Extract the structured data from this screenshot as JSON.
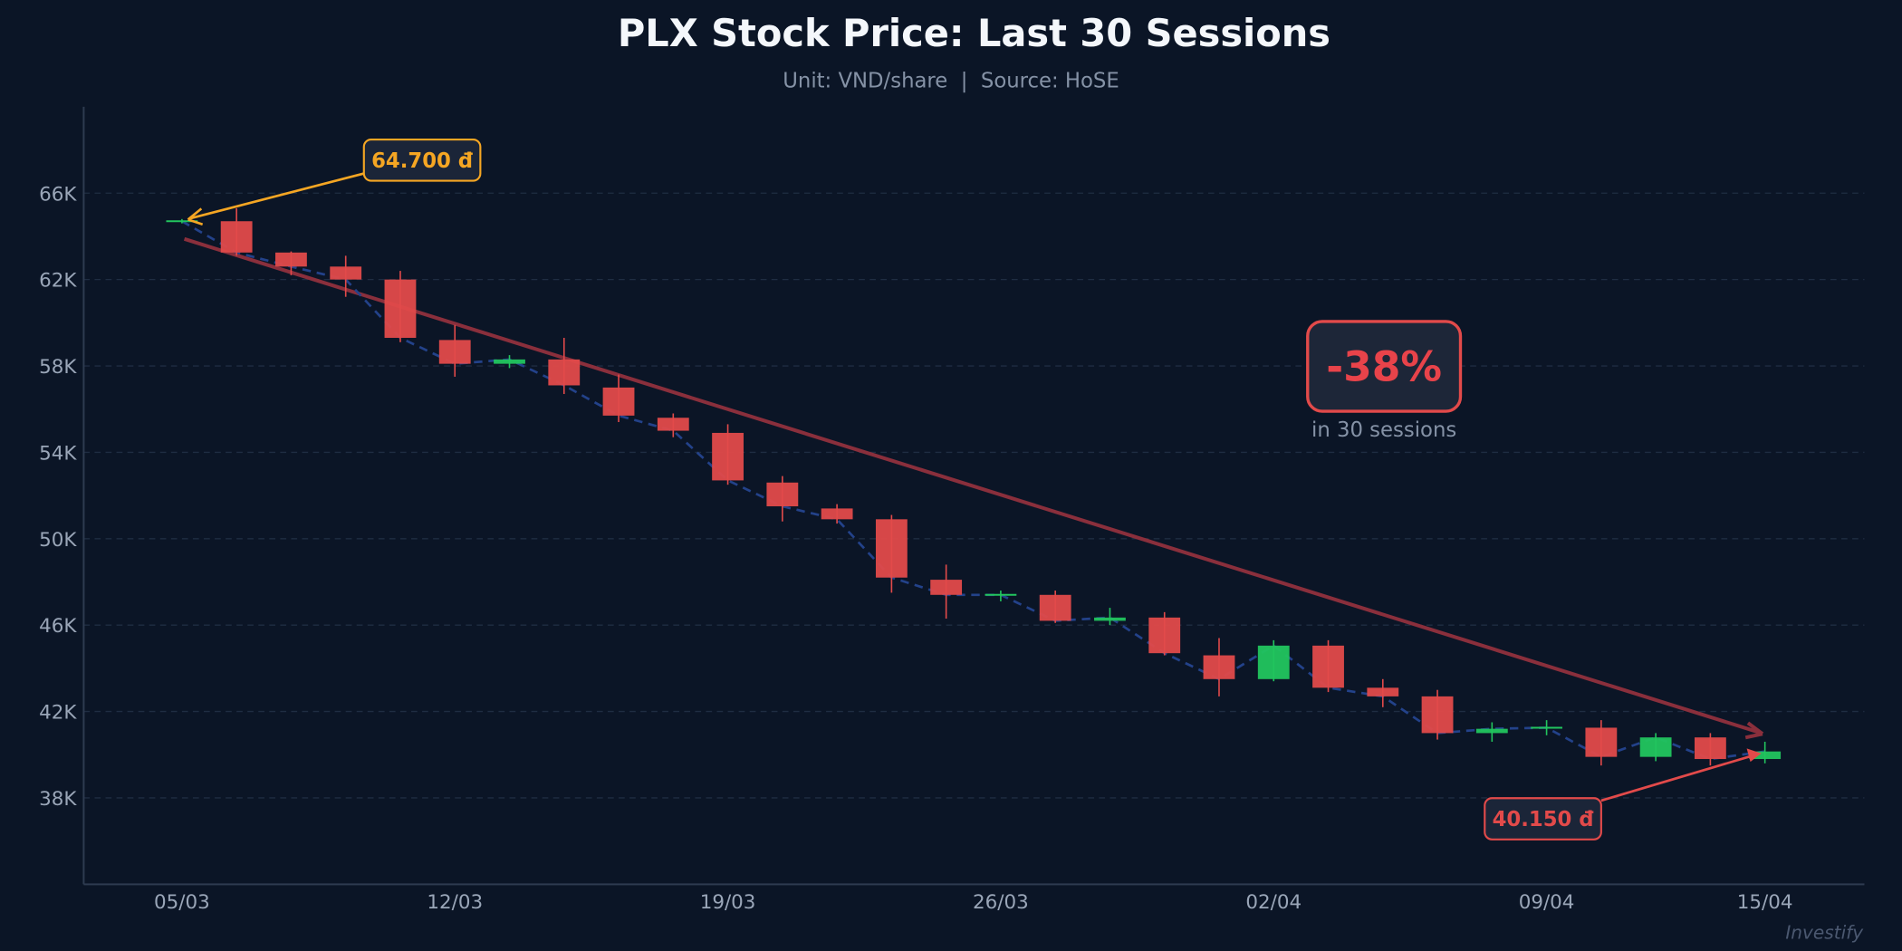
{
  "chart_data": {
    "type": "candlestick",
    "title": "PLX Stock Price: Last 30 Sessions",
    "subtitle": "Unit: VND/share  |  Source: HoSE",
    "xlabel": "",
    "ylabel": "",
    "ylim": [
      34000,
      70000
    ],
    "grid": true,
    "y_ticks": [
      "38K",
      "42K",
      "46K",
      "50K",
      "54K",
      "58K",
      "62K",
      "66K"
    ],
    "y_tick_values": [
      38000,
      42000,
      46000,
      50000,
      54000,
      58000,
      62000,
      66000
    ],
    "x_ticks": [
      {
        "label": "05/03",
        "session": 0
      },
      {
        "label": "12/03",
        "session": 5
      },
      {
        "label": "19/03",
        "session": 10
      },
      {
        "label": "26/03",
        "session": 15
      },
      {
        "label": "02/04",
        "session": 20
      },
      {
        "label": "09/04",
        "session": 25
      },
      {
        "label": "15/04",
        "session": 29
      }
    ],
    "colors": {
      "up": "#22c55e",
      "down": "#e24a4a",
      "close_line": "#23428a",
      "trend": "#8a2f3c",
      "start": "#f5a623",
      "end": "#e24a4a",
      "grid": "#1f2d42",
      "background": "#0b1526"
    },
    "ohlc": [
      [
        64700,
        64800,
        64600,
        64700
      ],
      [
        64700,
        65300,
        63100,
        63250
      ],
      [
        63250,
        63300,
        62200,
        62600
      ],
      [
        62600,
        63100,
        61200,
        62000
      ],
      [
        62000,
        62400,
        59100,
        59300
      ],
      [
        59200,
        59900,
        57500,
        58100
      ],
      [
        58100,
        58500,
        57900,
        58300
      ],
      [
        58300,
        59300,
        56700,
        57100
      ],
      [
        57000,
        57600,
        55400,
        55700
      ],
      [
        55600,
        55800,
        54700,
        55000
      ],
      [
        54900,
        55300,
        52500,
        52700
      ],
      [
        52600,
        52900,
        50800,
        51500
      ],
      [
        51400,
        51600,
        50700,
        50900
      ],
      [
        50900,
        51100,
        47500,
        48200
      ],
      [
        48100,
        48800,
        46300,
        47400
      ],
      [
        47400,
        47600,
        47100,
        47400
      ],
      [
        47400,
        47600,
        46100,
        46200
      ],
      [
        46200,
        46800,
        46000,
        46350
      ],
      [
        46350,
        46600,
        44600,
        44700
      ],
      [
        44600,
        45400,
        42700,
        43500
      ],
      [
        43500,
        45300,
        43400,
        45050
      ],
      [
        45050,
        45300,
        42900,
        43100
      ],
      [
        43100,
        43500,
        42200,
        42700
      ],
      [
        42700,
        43000,
        40700,
        41000
      ],
      [
        41000,
        41500,
        40600,
        41200
      ],
      [
        41250,
        41600,
        40900,
        41250
      ],
      [
        41250,
        41600,
        39500,
        39900
      ],
      [
        39900,
        41000,
        39700,
        40800
      ],
      [
        40800,
        41000,
        39500,
        39800
      ],
      [
        39800,
        40600,
        39600,
        40150
      ]
    ],
    "ohlc_fields": [
      "open",
      "high",
      "low",
      "close"
    ],
    "annotations": {
      "start_label": "64.700 đ",
      "end_label": "40.150 đ",
      "change": "-38%",
      "change_caption": "in 30 sessions"
    },
    "watermark": "Investify"
  }
}
